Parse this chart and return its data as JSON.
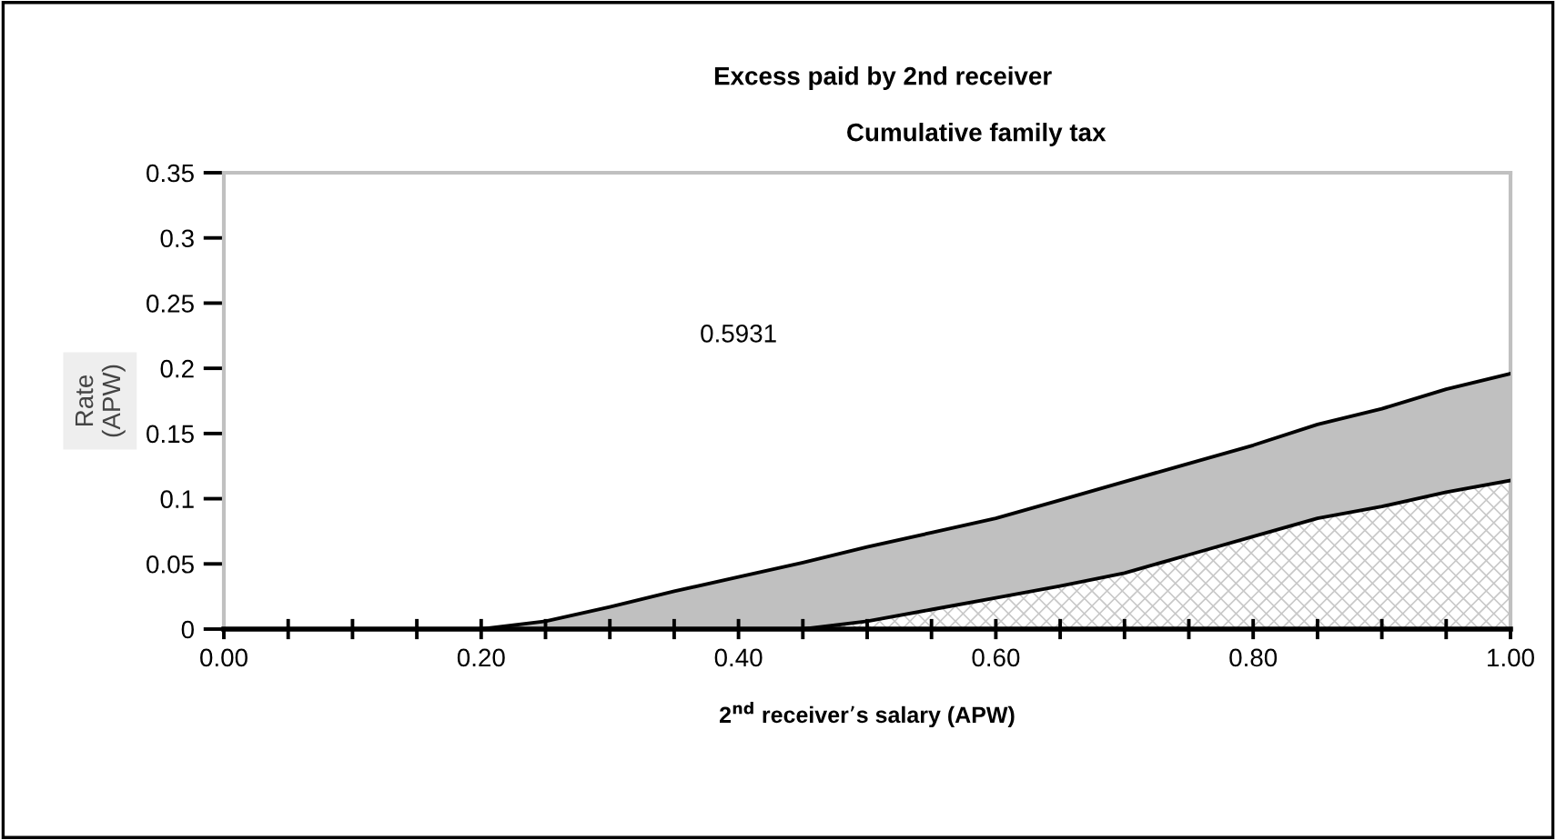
{
  "chart_data": {
    "type": "area",
    "title": "Excess paid by 2nd receiver",
    "subtitle": "Cumulative family tax",
    "xlabel": "2$^{nd}$ receiver’s salary (APW)",
    "ylabel": "Rate\n(APW)",
    "x": [
      0,
      0.05,
      0.1,
      0.15,
      0.2,
      0.25,
      0.3,
      0.35,
      0.4,
      0.45,
      0.5,
      0.55,
      0.6,
      0.65,
      0.7,
      0.75,
      0.8,
      0.85,
      0.9,
      0.95,
      1.0
    ],
    "stacked": true,
    "series": [
      {
        "color": "#c8c8c8",
        "values": [
          0,
          0,
          0,
          0,
          0,
          0,
          0,
          0,
          0,
          0,
          0.006,
          0.015,
          0.024,
          0.033,
          0.043,
          0.057,
          0.071,
          0.085,
          0.094,
          0.105,
          0.114
        ]
      },
      {
        "color": "#c0c0c0",
        "values": [
          0,
          0,
          0,
          0,
          0,
          0.006,
          0.017,
          0.029,
          0.04,
          0.051,
          0.057,
          0.059,
          0.061,
          0.066,
          0.07,
          0.07,
          0.07,
          0.072,
          0.075,
          0.079,
          0.082
        ]
      }
    ],
    "annotations": [
      "0.5931"
    ],
    "xlim": [
      0,
      1.0
    ],
    "ylim": [
      0,
      0.35
    ],
    "xticks": [
      {
        "value": 0,
        "label": "0.00"
      },
      {
        "value": 0.05,
        "label": null
      },
      {
        "value": 0.1,
        "label": null
      },
      {
        "value": 0.15,
        "label": null
      },
      {
        "value": 0.2,
        "label": "0.20"
      },
      {
        "value": 0.25,
        "label": null
      },
      {
        "value": 0.3,
        "label": null
      },
      {
        "value": 0.35,
        "label": null
      },
      {
        "value": 0.4,
        "label": "0.40"
      },
      {
        "value": 0.45,
        "label": null
      },
      {
        "value": 0.5,
        "label": null
      },
      {
        "value": 0.55,
        "label": null
      },
      {
        "value": 0.6,
        "label": "0.60"
      },
      {
        "value": 0.65,
        "label": null
      },
      {
        "value": 0.7,
        "label": null
      },
      {
        "value": 0.75,
        "label": null
      },
      {
        "value": 0.8,
        "label": "0.80"
      },
      {
        "value": 0.85,
        "label": null
      },
      {
        "value": 0.9,
        "label": null
      },
      {
        "value": 0.95,
        "label": null
      },
      {
        "value": 1.0,
        "label": "1.00"
      }
    ],
    "yticks": [
      0,
      0.05,
      0.1,
      0.15,
      0.2,
      0.25,
      0.3,
      0.35
    ],
    "grid": false,
    "legend": false
  }
}
